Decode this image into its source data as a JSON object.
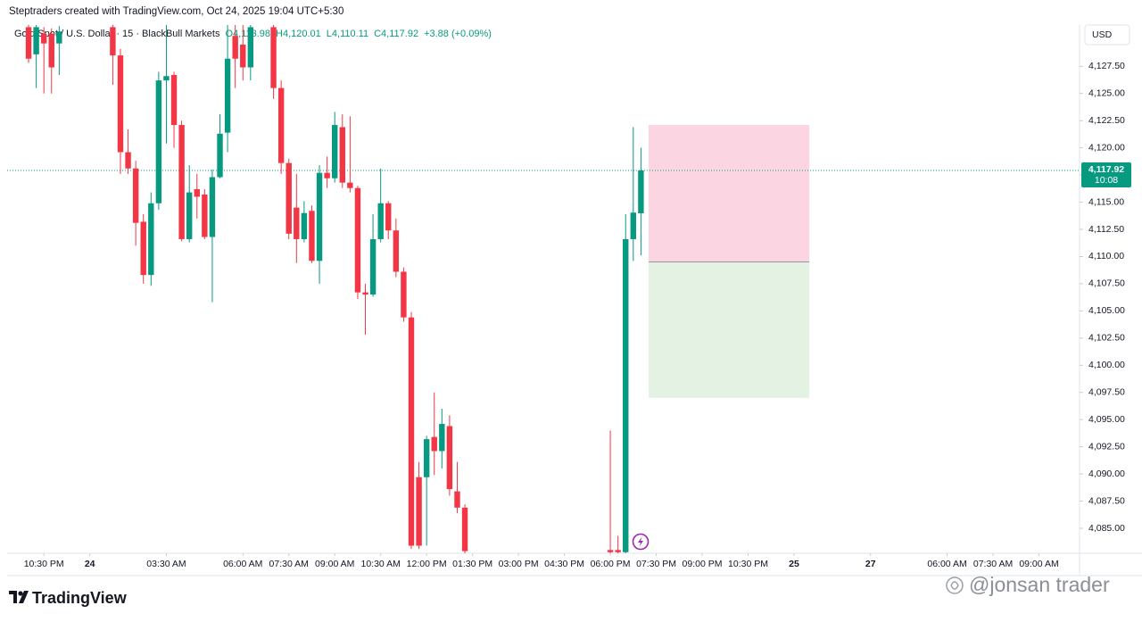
{
  "header": {
    "credit": "Steptraders created with TradingView.com, Oct 24, 2025 19:04 UTC+5:30",
    "symbol": "Gold Spot / U.S. Dollar · 15 · BlackBull Markets",
    "ohlc": [
      "O4,113.98",
      "H4,120.01",
      "L4,110.11",
      "C4,117.92",
      "+3.88 (+0.09%)"
    ]
  },
  "currency": "USD",
  "chart_data": {
    "type": "candlestick",
    "x": [
      -2,
      -1,
      0,
      1,
      2,
      9,
      10,
      11,
      12,
      13,
      14,
      15,
      16,
      17,
      18,
      19,
      20,
      21,
      22,
      23,
      24,
      25,
      26,
      27,
      30,
      31,
      32,
      33,
      34,
      35,
      36,
      37,
      38,
      39,
      40,
      41,
      42,
      43,
      44,
      45,
      46,
      47,
      48,
      49,
      50,
      51,
      52,
      53,
      54,
      55,
      74,
      75,
      76,
      77,
      78
    ],
    "open": [
      4131.1,
      4128.6,
      4130.5,
      4130.5,
      4129.6,
      4131.1,
      4128.5,
      4119.6,
      4118.1,
      4113.2,
      4108.3,
      4114.9,
      4126.2,
      4126.7,
      4122.1,
      4111.6,
      4116.2,
      4115.7,
      4111.8,
      4117.3,
      4121.4,
      4130.3,
      4129.5,
      4127.4,
      4131.1,
      4125.5,
      4118.6,
      4114.5,
      4111.6,
      4114.2,
      4109.6,
      4117.7,
      4117.2,
      4121.9,
      4116.8,
      4116.3,
      4106.7,
      4106.5,
      4111.6,
      4114.9,
      4112.4,
      4108.6,
      4104.4,
      4089.7,
      4089.7,
      4093.4,
      4092.1,
      4094.4,
      4088.4,
      4086.9,
      4083.0,
      4083.0,
      4082.8,
      4111.6,
      4113.98
    ],
    "high": [
      4131.3,
      4131.3,
      4131.1,
      4131.0,
      4131.2,
      4131.3,
      4129.1,
      4121.7,
      4118.8,
      4113.9,
      4115.9,
      4127.0,
      4131.3,
      4127.0,
      4122.5,
      4118.4,
      4117.6,
      4116.2,
      4118.0,
      4123.1,
      4131.3,
      4131.3,
      4131.3,
      4131.3,
      4131.3,
      4126.2,
      4119.0,
      4117.6,
      4115.1,
      4114.7,
      4118.4,
      4119.2,
      4123.3,
      4123.1,
      4122.9,
      4116.5,
      4107.5,
      4113.9,
      4118.1,
      4115.1,
      4113.5,
      4109.0,
      4104.9,
      4091.1,
      4093.5,
      4097.5,
      4096.0,
      4095.4,
      4091.1,
      4087.2,
      4094.0,
      4084.3,
      4113.9,
      4121.9,
      4120.01
    ],
    "low": [
      4127.8,
      4125.5,
      4125.0,
      4125.0,
      4126.7,
      4125.8,
      4117.6,
      4117.6,
      4111.0,
      4107.5,
      4107.3,
      4114.3,
      4120.4,
      4120.0,
      4111.4,
      4111.3,
      4113.5,
      4111.6,
      4105.8,
      4117.2,
      4119.6,
      4125.5,
      4126.2,
      4126.2,
      4124.5,
      4117.6,
      4111.6,
      4109.4,
      4111.3,
      4109.4,
      4107.5,
      4116.3,
      4116.8,
      4116.3,
      4115.9,
      4106.1,
      4102.8,
      4106.3,
      4111.3,
      4111.6,
      4108.1,
      4104.0,
      4083.1,
      4083.1,
      4083.4,
      4089.9,
      4090.5,
      4088.0,
      4086.4,
      4082.7,
      4082.7,
      4082.7,
      4082.7,
      4109.6,
      4110.11
    ],
    "close": [
      4128.2,
      4131.1,
      4129.6,
      4127.4,
      4130.7,
      4128.5,
      4119.6,
      4118.1,
      4113.1,
      4108.3,
      4114.9,
      4126.2,
      4126.6,
      4122.1,
      4111.6,
      4115.9,
      4115.5,
      4111.8,
      4117.3,
      4121.3,
      4128.2,
      4128.2,
      4127.4,
      4131.1,
      4125.5,
      4118.6,
      4112.1,
      4111.6,
      4114.0,
      4109.6,
      4117.7,
      4117.2,
      4122.1,
      4116.8,
      4116.3,
      4106.7,
      4106.5,
      4111.6,
      4114.9,
      4112.4,
      4108.6,
      4104.4,
      4083.4,
      4083.4,
      4093.2,
      4092.1,
      4094.6,
      4088.6,
      4086.9,
      4082.9,
      4082.8,
      4082.8,
      4111.6,
      4114.04,
      4117.92
    ],
    "up_color": "#089981",
    "down_color": "#f23645",
    "xlim": [
      -4.8,
      135.3
    ],
    "ylim": [
      4082.7,
      4131.3
    ],
    "yticks": [
      {
        "value": 4085,
        "label": "4,085.00"
      },
      {
        "value": 4087.5,
        "label": "4,087.50"
      },
      {
        "value": 4090,
        "label": "4,090.00"
      },
      {
        "value": 4092.5,
        "label": "4,092.50"
      },
      {
        "value": 4095,
        "label": "4,095.00"
      },
      {
        "value": 4097.5,
        "label": "4,097.50"
      },
      {
        "value": 4100,
        "label": "4,100.00"
      },
      {
        "value": 4102.5,
        "label": "4,102.50"
      },
      {
        "value": 4105,
        "label": "4,105.00"
      },
      {
        "value": 4107.5,
        "label": "4,107.50"
      },
      {
        "value": 4110,
        "label": "4,110.00"
      },
      {
        "value": 4112.5,
        "label": "4,112.50"
      },
      {
        "value": 4115,
        "label": "4,115.00"
      },
      {
        "value": 4117.5,
        "label": "4,117.50"
      },
      {
        "value": 4120,
        "label": "4,120.00"
      },
      {
        "value": 4122.5,
        "label": "4,122.50"
      },
      {
        "value": 4125,
        "label": "4,125.00"
      },
      {
        "value": 4127.5,
        "label": "4,127.50"
      }
    ],
    "xticks": [
      {
        "value": 0,
        "label": "10:30 PM"
      },
      {
        "value": 6,
        "label": "24"
      },
      {
        "value": 16,
        "label": "03:30 AM"
      },
      {
        "value": 26,
        "label": "06:00 AM"
      },
      {
        "value": 32,
        "label": "07:30 AM"
      },
      {
        "value": 38,
        "label": "09:00 AM"
      },
      {
        "value": 44,
        "label": "10:30 AM"
      },
      {
        "value": 50,
        "label": "12:00 PM"
      },
      {
        "value": 56,
        "label": "01:30 PM"
      },
      {
        "value": 62,
        "label": "03:00 PM"
      },
      {
        "value": 68,
        "label": "04:30 PM"
      },
      {
        "value": 74,
        "label": "06:00 PM"
      },
      {
        "value": 80,
        "label": "07:30 PM"
      },
      {
        "value": 86,
        "label": "09:00 PM"
      },
      {
        "value": 92,
        "label": "10:30 PM"
      },
      {
        "value": 98,
        "label": "25"
      },
      {
        "value": 108,
        "label": "27"
      },
      {
        "value": 118,
        "label": "06:00 AM"
      },
      {
        "value": 124,
        "label": "07:30 AM"
      },
      {
        "value": 130,
        "label": "09:00 AM"
      }
    ],
    "last_price": {
      "value": 4117.92,
      "label": "4,117.92"
    },
    "countdown": "10:08",
    "position": {
      "x": [
        79,
        100
      ],
      "stop": 4122.1,
      "entry": 4109.5,
      "target": 4097.0,
      "stop_color": "#fcd5e3",
      "target_color": "#e3f2e3"
    }
  },
  "footer": {
    "logo": "TradingView",
    "watermark": "@jonsan trader"
  }
}
